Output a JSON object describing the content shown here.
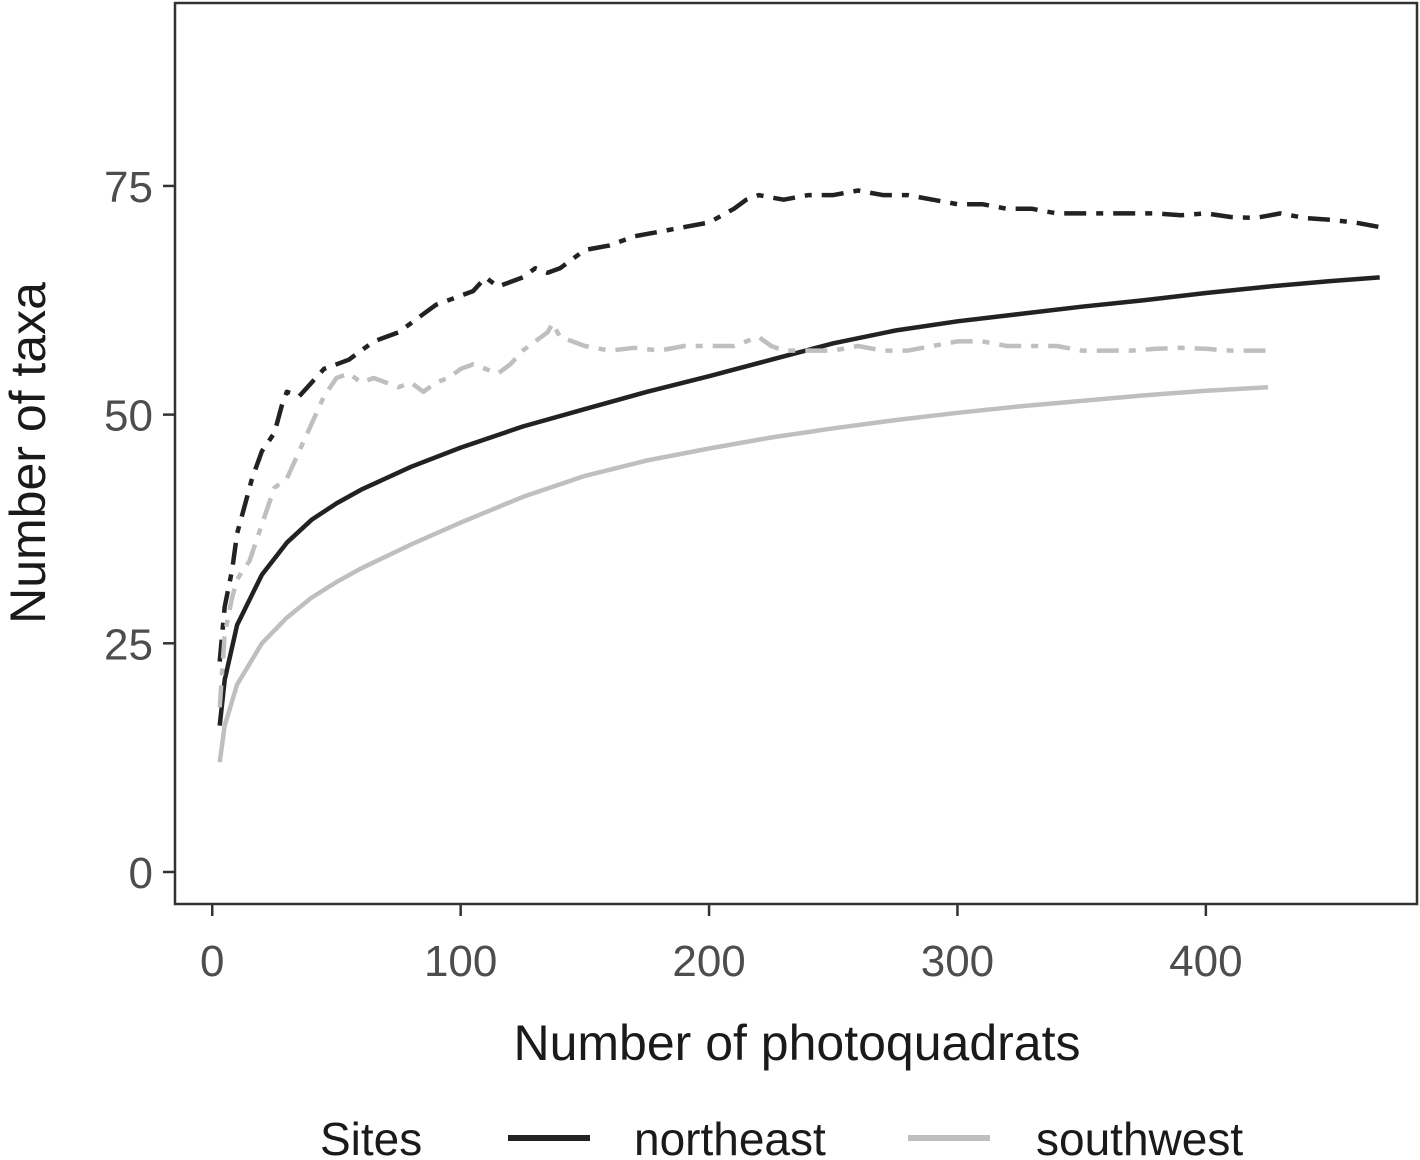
{
  "chart_data": {
    "type": "line",
    "xlabel": "Number of photoquadrats",
    "ylabel": "Number of taxa",
    "xlim": [
      -15,
      485
    ],
    "ylim": [
      -3.5,
      95
    ],
    "x_ticks": [
      0,
      100,
      200,
      300,
      400
    ],
    "y_ticks": [
      0,
      25,
      50,
      75
    ],
    "grid": false,
    "legend": {
      "title": "Sites",
      "position": "bottom",
      "entries": [
        {
          "label": "northeast",
          "color": "#222222"
        },
        {
          "label": "southwest",
          "color": "#bfbfbf"
        }
      ]
    },
    "series": [
      {
        "name": "northeast",
        "style": "solid",
        "color": "#222222",
        "x": [
          3,
          5,
          10,
          20,
          30,
          40,
          50,
          60,
          80,
          100,
          125,
          150,
          175,
          200,
          225,
          250,
          275,
          300,
          325,
          350,
          375,
          400,
          425,
          450,
          470
        ],
        "y": [
          16,
          21,
          27,
          32.5,
          36,
          38.5,
          40.3,
          41.8,
          44.3,
          46.4,
          48.7,
          50.6,
          52.5,
          54.2,
          56,
          57.8,
          59.2,
          60.2,
          61,
          61.8,
          62.5,
          63.3,
          64,
          64.6,
          65
        ]
      },
      {
        "name": "southwest",
        "style": "solid",
        "color": "#bfbfbf",
        "x": [
          3,
          5,
          10,
          20,
          30,
          40,
          50,
          60,
          80,
          100,
          125,
          150,
          175,
          200,
          225,
          250,
          275,
          300,
          325,
          350,
          375,
          400,
          425
        ],
        "y": [
          12,
          16,
          20.5,
          25,
          27.8,
          30,
          31.7,
          33.2,
          35.8,
          38.2,
          41,
          43.3,
          45,
          46.3,
          47.5,
          48.5,
          49.4,
          50.2,
          50.9,
          51.5,
          52.1,
          52.6,
          53
        ]
      },
      {
        "name": "northeast",
        "style": "dashed",
        "color": "#222222",
        "x": [
          3,
          5,
          8,
          10,
          13,
          16,
          20,
          25,
          28,
          30,
          35,
          40,
          45,
          50,
          55,
          60,
          65,
          70,
          75,
          80,
          85,
          90,
          95,
          100,
          105,
          110,
          115,
          120,
          125,
          130,
          135,
          140,
          145,
          150,
          160,
          170,
          180,
          190,
          200,
          210,
          215,
          220,
          230,
          240,
          250,
          260,
          270,
          280,
          290,
          300,
          310,
          320,
          330,
          340,
          350,
          360,
          370,
          380,
          390,
          400,
          410,
          420,
          430,
          440,
          450,
          460,
          470
        ],
        "y": [
          23,
          29,
          33,
          37,
          40,
          43,
          46,
          48,
          51,
          52.5,
          52,
          53.5,
          55,
          55.5,
          56,
          57,
          58,
          58.5,
          59,
          60,
          61,
          62,
          62.5,
          63,
          63.5,
          65,
          64,
          64.5,
          65,
          66,
          65.5,
          66,
          67,
          68,
          68.5,
          69.5,
          70,
          70.5,
          71,
          72.5,
          73.5,
          74,
          73.5,
          74,
          74,
          74.5,
          74,
          74,
          73.5,
          73,
          73,
          72.5,
          72.5,
          72,
          72,
          72,
          72,
          72,
          71.8,
          72,
          71.6,
          71.5,
          72,
          71.5,
          71.3,
          71,
          70.5
        ]
      },
      {
        "name": "southwest",
        "style": "dashed",
        "color": "#bfbfbf",
        "x": [
          3,
          5,
          8,
          10,
          15,
          20,
          25,
          30,
          35,
          40,
          45,
          50,
          55,
          60,
          65,
          70,
          75,
          80,
          85,
          90,
          95,
          100,
          105,
          110,
          115,
          120,
          125,
          130,
          135,
          137,
          140,
          145,
          150,
          160,
          170,
          180,
          190,
          200,
          210,
          215,
          220,
          225,
          230,
          240,
          250,
          260,
          270,
          280,
          290,
          300,
          310,
          320,
          330,
          340,
          350,
          360,
          370,
          380,
          390,
          400,
          410,
          425
        ],
        "y": [
          18,
          26,
          30,
          32,
          34,
          38,
          42,
          43,
          46,
          49,
          52,
          54,
          54.5,
          53.5,
          54,
          53.5,
          53,
          53.5,
          52.5,
          53.5,
          54,
          55,
          55.5,
          55,
          54.5,
          55.5,
          57,
          58,
          59,
          60,
          58.5,
          58,
          57.5,
          57,
          57.3,
          57,
          57.5,
          57.5,
          57.5,
          58,
          58.5,
          57.5,
          57,
          57,
          57,
          57.5,
          57,
          57,
          57.5,
          58,
          58,
          57.5,
          57.5,
          57.5,
          57,
          57,
          57,
          57.2,
          57.3,
          57.2,
          57,
          57
        ]
      }
    ]
  }
}
